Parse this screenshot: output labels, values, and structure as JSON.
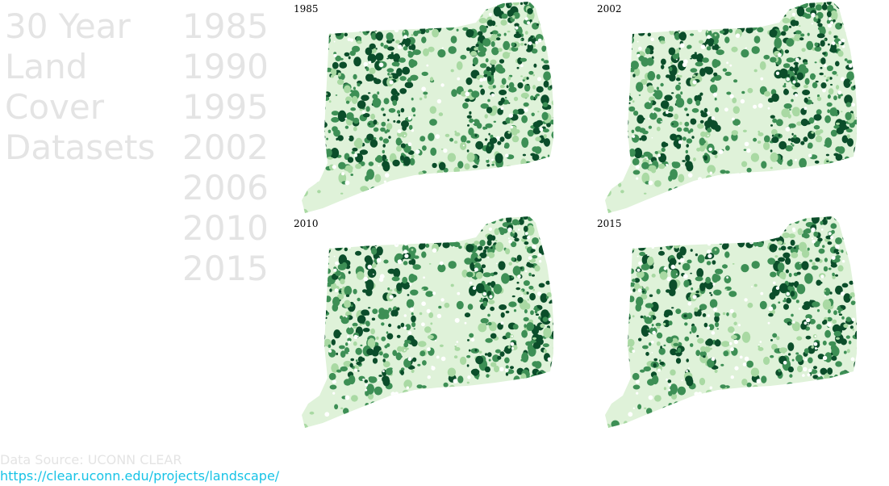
{
  "title": {
    "lines": [
      "30 Year",
      "Land",
      "Cover",
      "Datasets"
    ]
  },
  "years": [
    "1985",
    "1990",
    "1995",
    "2002",
    "2006",
    "2010",
    "2015"
  ],
  "maps": [
    {
      "label": "1985",
      "density": 1.0
    },
    {
      "label": "2002",
      "density": 0.93
    },
    {
      "label": "2010",
      "density": 0.86
    },
    {
      "label": "2015",
      "density": 0.8
    }
  ],
  "colors": {
    "muted_text": "#e4e4e4",
    "link": "#17c3e6",
    "forest_dark": "#0b4d2a",
    "forest_mid": "#3d8f55",
    "forest_light": "#a9d9a3",
    "forest_pale": "#dff2d9"
  },
  "source": {
    "text": "Data Source: UCONN CLEAR",
    "url": "https://clear.uconn.edu/projects/landscape/"
  }
}
